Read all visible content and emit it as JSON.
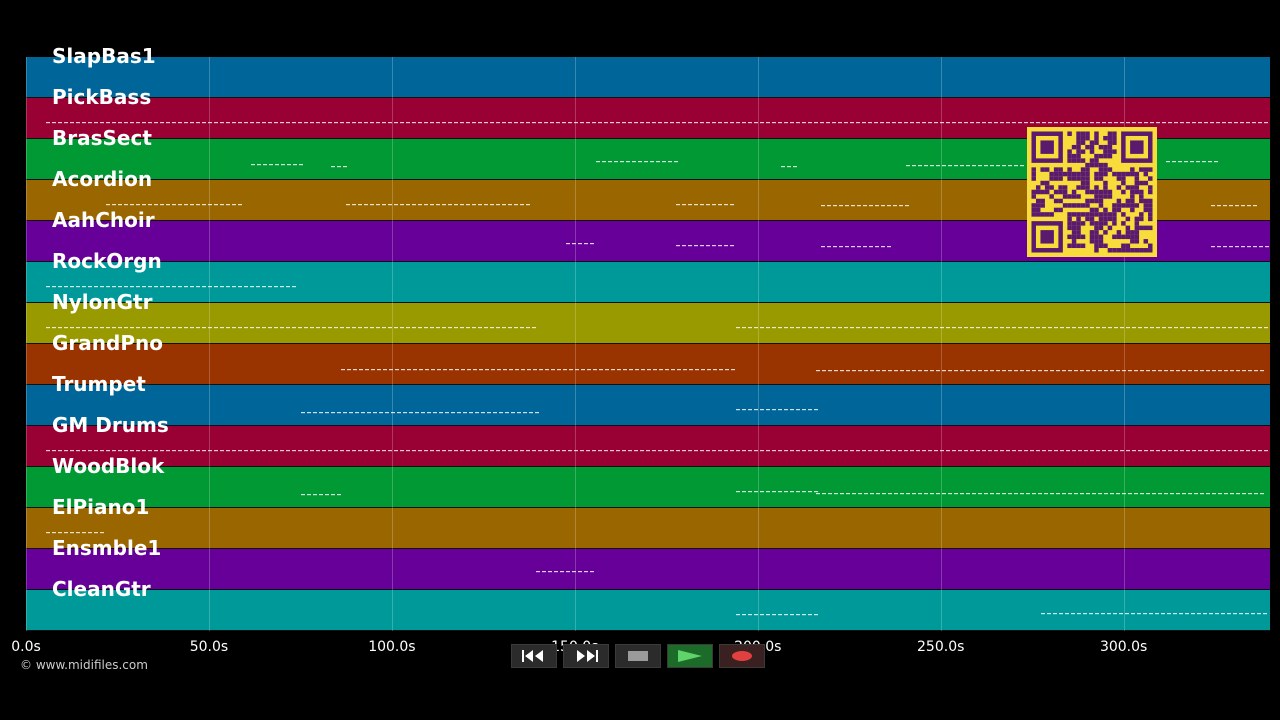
{
  "tracks": [
    {
      "name": "SlapBas1",
      "color": "#006699"
    },
    {
      "name": "PickBass",
      "color": "#990033"
    },
    {
      "name": "BrasSect",
      "color": "#009933"
    },
    {
      "name": "Acordion",
      "color": "#996600"
    },
    {
      "name": "AahChoir",
      "color": "#660099"
    },
    {
      "name": "RockOrgn",
      "color": "#009999"
    },
    {
      "name": "NylonGtr",
      "color": "#999900"
    },
    {
      "name": "GrandPno",
      "color": "#993300"
    },
    {
      "name": "Trumpet",
      "color": "#006699"
    },
    {
      "name": "GM Drums",
      "color": "#990033"
    },
    {
      "name": "WoodBlok",
      "color": "#009933"
    },
    {
      "name": "ElPiano1",
      "color": "#996600"
    },
    {
      "name": "Ensmble1",
      "color": "#660099"
    },
    {
      "name": "CleanGtr",
      "color": "#009999"
    }
  ],
  "timeline": {
    "ticks": [
      "0.0s",
      "50.0s",
      "100.0s",
      "150.0s",
      "200.0s",
      "250.0s",
      "300.0s"
    ],
    "tick_values": [
      0,
      50,
      100,
      150,
      200,
      250,
      300
    ],
    "range": [
      0,
      340
    ]
  },
  "copyright": "© www.midifiles.com",
  "transport": {
    "buttons": [
      {
        "name": "rewind-button",
        "icon": "rewind-icon"
      },
      {
        "name": "fast-forward-button",
        "icon": "fast-forward-icon"
      },
      {
        "name": "stop-button",
        "icon": "stop-icon"
      },
      {
        "name": "play-button",
        "icon": "play-icon"
      },
      {
        "name": "record-button",
        "icon": "record-icon"
      }
    ]
  },
  "qr_code": {
    "color": "#f8dc3c",
    "icon": "qr-code-icon"
  }
}
